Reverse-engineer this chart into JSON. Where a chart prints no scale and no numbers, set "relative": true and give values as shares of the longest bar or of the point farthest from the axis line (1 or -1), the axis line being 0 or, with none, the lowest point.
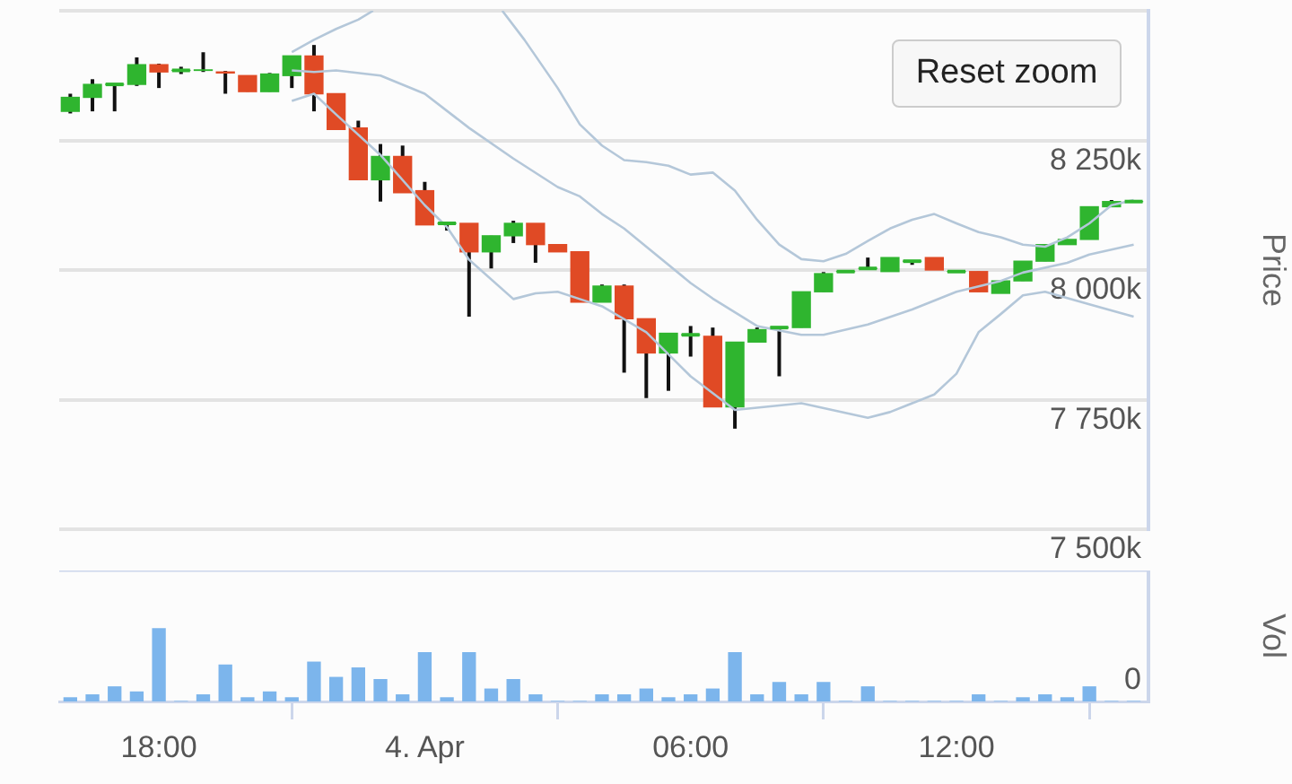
{
  "chart_data": [
    {
      "type": "candlestick",
      "ylabel": "Price",
      "annotations": [
        "Reset zoom"
      ],
      "grid": "y",
      "tick_labels": "y",
      "marker": "none",
      "x": [
        "--04-03T16:00",
        "--04-03T16:30",
        "--04-03T17:00",
        "--04-03T17:30",
        "--04-03T18:00",
        "--04-03T18:30",
        "--04-03T19:00",
        "--04-03T19:30",
        "--04-03T20:00",
        "--04-03T20:30",
        "--04-03T21:00",
        "--04-03T21:30",
        "--04-03T22:00",
        "--04-03T22:30",
        "--04-03T23:00",
        "--04-03T23:30",
        "--04-04T00:00",
        "--04-04T00:30",
        "--04-04T01:00",
        "--04-04T01:30",
        "--04-04T02:00",
        "--04-04T02:30",
        "--04-04T03:00",
        "--04-04T03:30",
        "--04-04T04:00",
        "--04-04T04:30",
        "--04-04T05:00",
        "--04-04T05:30",
        "--04-04T06:00",
        "--04-04T06:30",
        "--04-04T07:00",
        "--04-04T07:30",
        "--04-04T08:00",
        "--04-04T08:30",
        "--04-04T09:00",
        "--04-04T09:30",
        "--04-04T10:00",
        "--04-04T10:30",
        "--04-04T11:00",
        "--04-04T11:30",
        "--04-04T12:00",
        "--04-04T12:30",
        "--04-04T13:00",
        "--04-04T13:30",
        "--04-04T14:00",
        "--04-04T14:30",
        "--04-04T15:00",
        "--04-04T15:30",
        "--04-04T16:00"
      ],
      "ohlc": [
        [
          8306,
          8340,
          8302,
          8333
        ],
        [
          8333,
          8368,
          8306,
          8358
        ],
        [
          8358,
          8360,
          8306,
          8358
        ],
        [
          8358,
          8410,
          8355,
          8396
        ],
        [
          8396,
          8398,
          8351,
          8382
        ],
        [
          8385,
          8392,
          8378,
          8385
        ],
        [
          8385,
          8420,
          8382,
          8386
        ],
        [
          8382,
          8384,
          8340,
          8380
        ],
        [
          8375,
          8375,
          8344,
          8344
        ],
        [
          8344,
          8380,
          8344,
          8378
        ],
        [
          8375,
          8413,
          8351,
          8413
        ],
        [
          8413,
          8434,
          8306,
          8340
        ],
        [
          8340,
          8340,
          8271,
          8271
        ],
        [
          8274,
          8288,
          8174,
          8174
        ],
        [
          8174,
          8243,
          8132,
          8219
        ],
        [
          8219,
          8240,
          8149,
          8149
        ],
        [
          8153,
          8170,
          8087,
          8087
        ],
        [
          8090,
          8092,
          8076,
          8090
        ],
        [
          8090,
          8090,
          7910,
          8035
        ],
        [
          8035,
          8066,
          8003,
          8066
        ],
        [
          8066,
          8095,
          8052,
          8090
        ],
        [
          8090,
          8090,
          8014,
          8049
        ],
        [
          8049,
          8049,
          8035,
          8035
        ],
        [
          8035,
          8035,
          7938,
          7938
        ],
        [
          7938,
          7972,
          7938,
          7969
        ],
        [
          7969,
          7972,
          7802,
          7906
        ],
        [
          7906,
          7906,
          7753,
          7840
        ],
        [
          7840,
          7878,
          7767,
          7878
        ],
        [
          7875,
          7892,
          7833,
          7875
        ],
        [
          7872,
          7889,
          7736,
          7736
        ],
        [
          7736,
          7861,
          7694,
          7861
        ],
        [
          7861,
          7889,
          7861,
          7885
        ],
        [
          7889,
          7889,
          7795,
          7889
        ],
        [
          7889,
          7958,
          7889,
          7958
        ],
        [
          7958,
          7996,
          7958,
          7993
        ],
        [
          7997,
          7997,
          7997,
          7997
        ],
        [
          8003,
          8024,
          8003,
          8003
        ],
        [
          7997,
          8024,
          7997,
          8024
        ],
        [
          8017,
          8017,
          8010,
          8017
        ],
        [
          8024,
          8024,
          8000,
          8000
        ],
        [
          7997,
          7997,
          7997,
          7997
        ],
        [
          7997,
          7997,
          7958,
          7958
        ],
        [
          7955,
          7979,
          7955,
          7979
        ],
        [
          7979,
          8017,
          7979,
          8017
        ],
        [
          8017,
          8049,
          8017,
          8049
        ],
        [
          8049,
          8059,
          8049,
          8059
        ],
        [
          8059,
          8122,
          8059,
          8122
        ],
        [
          8122,
          8135,
          8122,
          8132
        ],
        [
          8132,
          8134,
          8130,
          8132
        ]
      ],
      "colors": [
        "#2fb52f",
        "#2fb52f",
        "#2fb52f",
        "#2fb52f",
        "#e04a25",
        "#2fb52f",
        "#2fb52f",
        "#e04a25",
        "#e04a25",
        "#2fb52f",
        "#2fb52f",
        "#e04a25",
        "#e04a25",
        "#e04a25",
        "#2fb52f",
        "#e04a25",
        "#e04a25",
        "#2fb52f",
        "#e04a25",
        "#2fb52f",
        "#2fb52f",
        "#e04a25",
        "#e04a25",
        "#e04a25",
        "#2fb52f",
        "#e04a25",
        "#e04a25",
        "#2fb52f",
        "#2fb52f",
        "#e04a25",
        "#2fb52f",
        "#2fb52f",
        "#2fb52f",
        "#2fb52f",
        "#2fb52f",
        "#2fb52f",
        "#2fb52f",
        "#2fb52f",
        "#2fb52f",
        "#e04a25",
        "#2fb52f",
        "#e04a25",
        "#2fb52f",
        "#2fb52f",
        "#2fb52f",
        "#2fb52f",
        "#2fb52f",
        "#2fb52f",
        "#2fb52f"
      ],
      "series": [
        {
          "type": "line",
          "color": "#b4c7d9",
          "x": [
            "--04-03T21:00",
            "--04-03T21:30",
            "--04-03T22:00",
            "--04-03T22:30",
            "--04-03T22:50",
            "--04-04T00:30",
            "--04-04T01:45",
            "--04-04T02:15",
            "--04-04T03:00",
            "--04-04T03:30",
            "--04-04T04:00",
            "--04-04T04:30",
            "--04-04T05:00",
            "--04-04T05:30",
            "--04-04T06:00",
            "--04-04T06:30",
            "--04-04T07:00",
            "--04-04T07:30",
            "--04-04T08:00",
            "--04-04T08:30",
            "--04-04T09:00",
            "--04-04T09:30",
            "--04-04T10:00",
            "--04-04T10:30",
            "--04-04T11:00",
            "--04-04T11:30",
            "--04-04T12:00",
            "--04-04T12:30",
            "--04-04T13:00",
            "--04-04T13:30",
            "--04-04T14:00",
            "--04-04T14:30",
            "--04-04T15:00",
            "--04-04T15:30",
            "--04-04T16:00"
          ],
          "values": [
            8420,
            8444,
            8465,
            8483,
            8500,
            null,
            8500,
            8444,
            8351,
            8281,
            8240,
            8212,
            8208,
            8201,
            8184,
            8188,
            8153,
            8097,
            8049,
            8021,
            8017,
            8031,
            8056,
            8080,
            8097,
            8108,
            8090,
            8073,
            8063,
            8049,
            8045,
            8063,
            8090,
            8125,
            8135
          ]
        },
        {
          "type": "line",
          "color": "#b4c7d9",
          "x": [
            "--04-03T21:00",
            "--04-03T21:30",
            "--04-03T22:00",
            "--04-03T23:00",
            "--04-04T00:00",
            "--04-04T01:00",
            "--04-04T02:00",
            "--04-04T03:00",
            "--04-04T03:30",
            "--04-04T04:00",
            "--04-04T04:30",
            "--04-04T05:00",
            "--04-04T06:00",
            "--04-04T06:30",
            "--04-04T07:30",
            "--04-04T08:30",
            "--04-04T09:00",
            "--04-04T10:00",
            "--04-04T11:00",
            "--04-04T12:00",
            "--04-04T13:00",
            "--04-04T13:30",
            "--04-04T14:30",
            "--04-04T15:00",
            "--04-04T16:00"
          ],
          "values": [
            8385,
            8382,
            8385,
            8375,
            8340,
            8274,
            8215,
            8160,
            8142,
            8108,
            8080,
            8045,
            7975,
            7945,
            7892,
            7875,
            7875,
            7895,
            7924,
            7958,
            7979,
            7995,
            8014,
            8030,
            8049
          ]
        },
        {
          "type": "line",
          "color": "#b4c7d9",
          "x": [
            "--04-03T21:00",
            "--04-03T21:30",
            "--04-03T22:00",
            "--04-03T23:00",
            "--04-04T00:00",
            "--04-04T00:30",
            "--04-04T01:00",
            "--04-04T02:00",
            "--04-04T02:30",
            "--04-04T03:00",
            "--04-04T03:30",
            "--04-04T04:00",
            "--04-04T05:00",
            "--04-04T06:00",
            "--04-04T07:00",
            "--04-04T08:30",
            "--04-04T10:00",
            "--04-04T10:30",
            "--04-04T11:30",
            "--04-04T12:00",
            "--04-04T12:30",
            "--04-04T13:00",
            "--04-04T13:30",
            "--04-04T14:00",
            "--04-04T15:00",
            "--04-04T16:00"
          ],
          "values": [
            8326,
            8340,
            8300,
            8222,
            8125,
            8083,
            8020,
            7944,
            7955,
            7958,
            7944,
            7930,
            7880,
            7795,
            7730,
            7743,
            7715,
            7726,
            7760,
            7800,
            7880,
            7915,
            7951,
            7958,
            7934,
            7910
          ]
        }
      ],
      "xlim": [
        "--04-03T15:45",
        "--04-04T16:20"
      ],
      "xticks": [
        {
          "value": "--04-03T18:00",
          "label": "18:00"
        },
        {
          "value": "--04-04T00:00",
          "label": "4. Apr"
        },
        {
          "value": "--04-04T06:00",
          "label": "06:00"
        },
        {
          "value": "--04-04T12:00",
          "label": "12:00"
        }
      ],
      "ylim": [
        7500,
        8500
      ],
      "yticks": [
        {
          "value": 7500,
          "label": "7 500k"
        },
        {
          "value": 7750,
          "label": "7 750k"
        },
        {
          "value": 8000,
          "label": "8 000k"
        },
        {
          "value": 8250,
          "label": "8 250k"
        },
        {
          "value": 8500,
          "label": null
        }
      ]
    },
    {
      "type": "bar",
      "relative": true,
      "ylabel": "Vol",
      "color": "#7cb5ec",
      "x": [
        "--04-03T16:00",
        "--04-03T16:30",
        "--04-03T17:00",
        "--04-03T17:30",
        "--04-03T18:00",
        "--04-03T18:30",
        "--04-03T19:00",
        "--04-03T19:30",
        "--04-03T20:00",
        "--04-03T20:30",
        "--04-03T21:00",
        "--04-03T21:30",
        "--04-03T22:00",
        "--04-03T22:30",
        "--04-03T23:00",
        "--04-03T23:30",
        "--04-04T00:00",
        "--04-04T00:30",
        "--04-04T01:00",
        "--04-04T01:30",
        "--04-04T02:00",
        "--04-04T02:30",
        "--04-04T03:00",
        "--04-04T03:30",
        "--04-04T04:00",
        "--04-04T04:30",
        "--04-04T05:00",
        "--04-04T05:30",
        "--04-04T06:00",
        "--04-04T06:30",
        "--04-04T07:00",
        "--04-04T07:30",
        "--04-04T08:00",
        "--04-04T08:30",
        "--04-04T09:00",
        "--04-04T09:30",
        "--04-04T10:00",
        "--04-04T10:30",
        "--04-04T11:00",
        "--04-04T11:30",
        "--04-04T12:00",
        "--04-04T12:30",
        "--04-04T13:00",
        "--04-04T13:30",
        "--04-04T14:00",
        "--04-04T14:30",
        "--04-04T15:00",
        "--04-04T15:30",
        "--04-04T16:00"
      ],
      "values": [
        0.05,
        0.09,
        0.2,
        0.13,
        1,
        0,
        0.09,
        0.5,
        0.05,
        0.13,
        0.05,
        0.54,
        0.33,
        0.46,
        0.3,
        0.09,
        0.67,
        0.05,
        0.67,
        0.17,
        0.3,
        0.09,
        0,
        0,
        0.09,
        0.09,
        0.17,
        0.05,
        0.09,
        0.17,
        0.67,
        0.09,
        0.26,
        0.09,
        0.26,
        0,
        0.2,
        0,
        0,
        0,
        0,
        0.09,
        0,
        0.05,
        0.09,
        0.05,
        0.2,
        0,
        0
      ],
      "xlim": [
        "--04-03T15:45",
        "--04-04T16:20"
      ],
      "xticks": [
        {
          "value": "--04-03T18:00",
          "label": "18:00"
        },
        {
          "value": "--04-04T00:00",
          "label": "4. Apr"
        },
        {
          "value": "--04-04T06:00",
          "label": "06:00"
        },
        {
          "value": "--04-04T12:00",
          "label": "12:00"
        }
      ],
      "annotations": [
        "0"
      ]
    }
  ]
}
